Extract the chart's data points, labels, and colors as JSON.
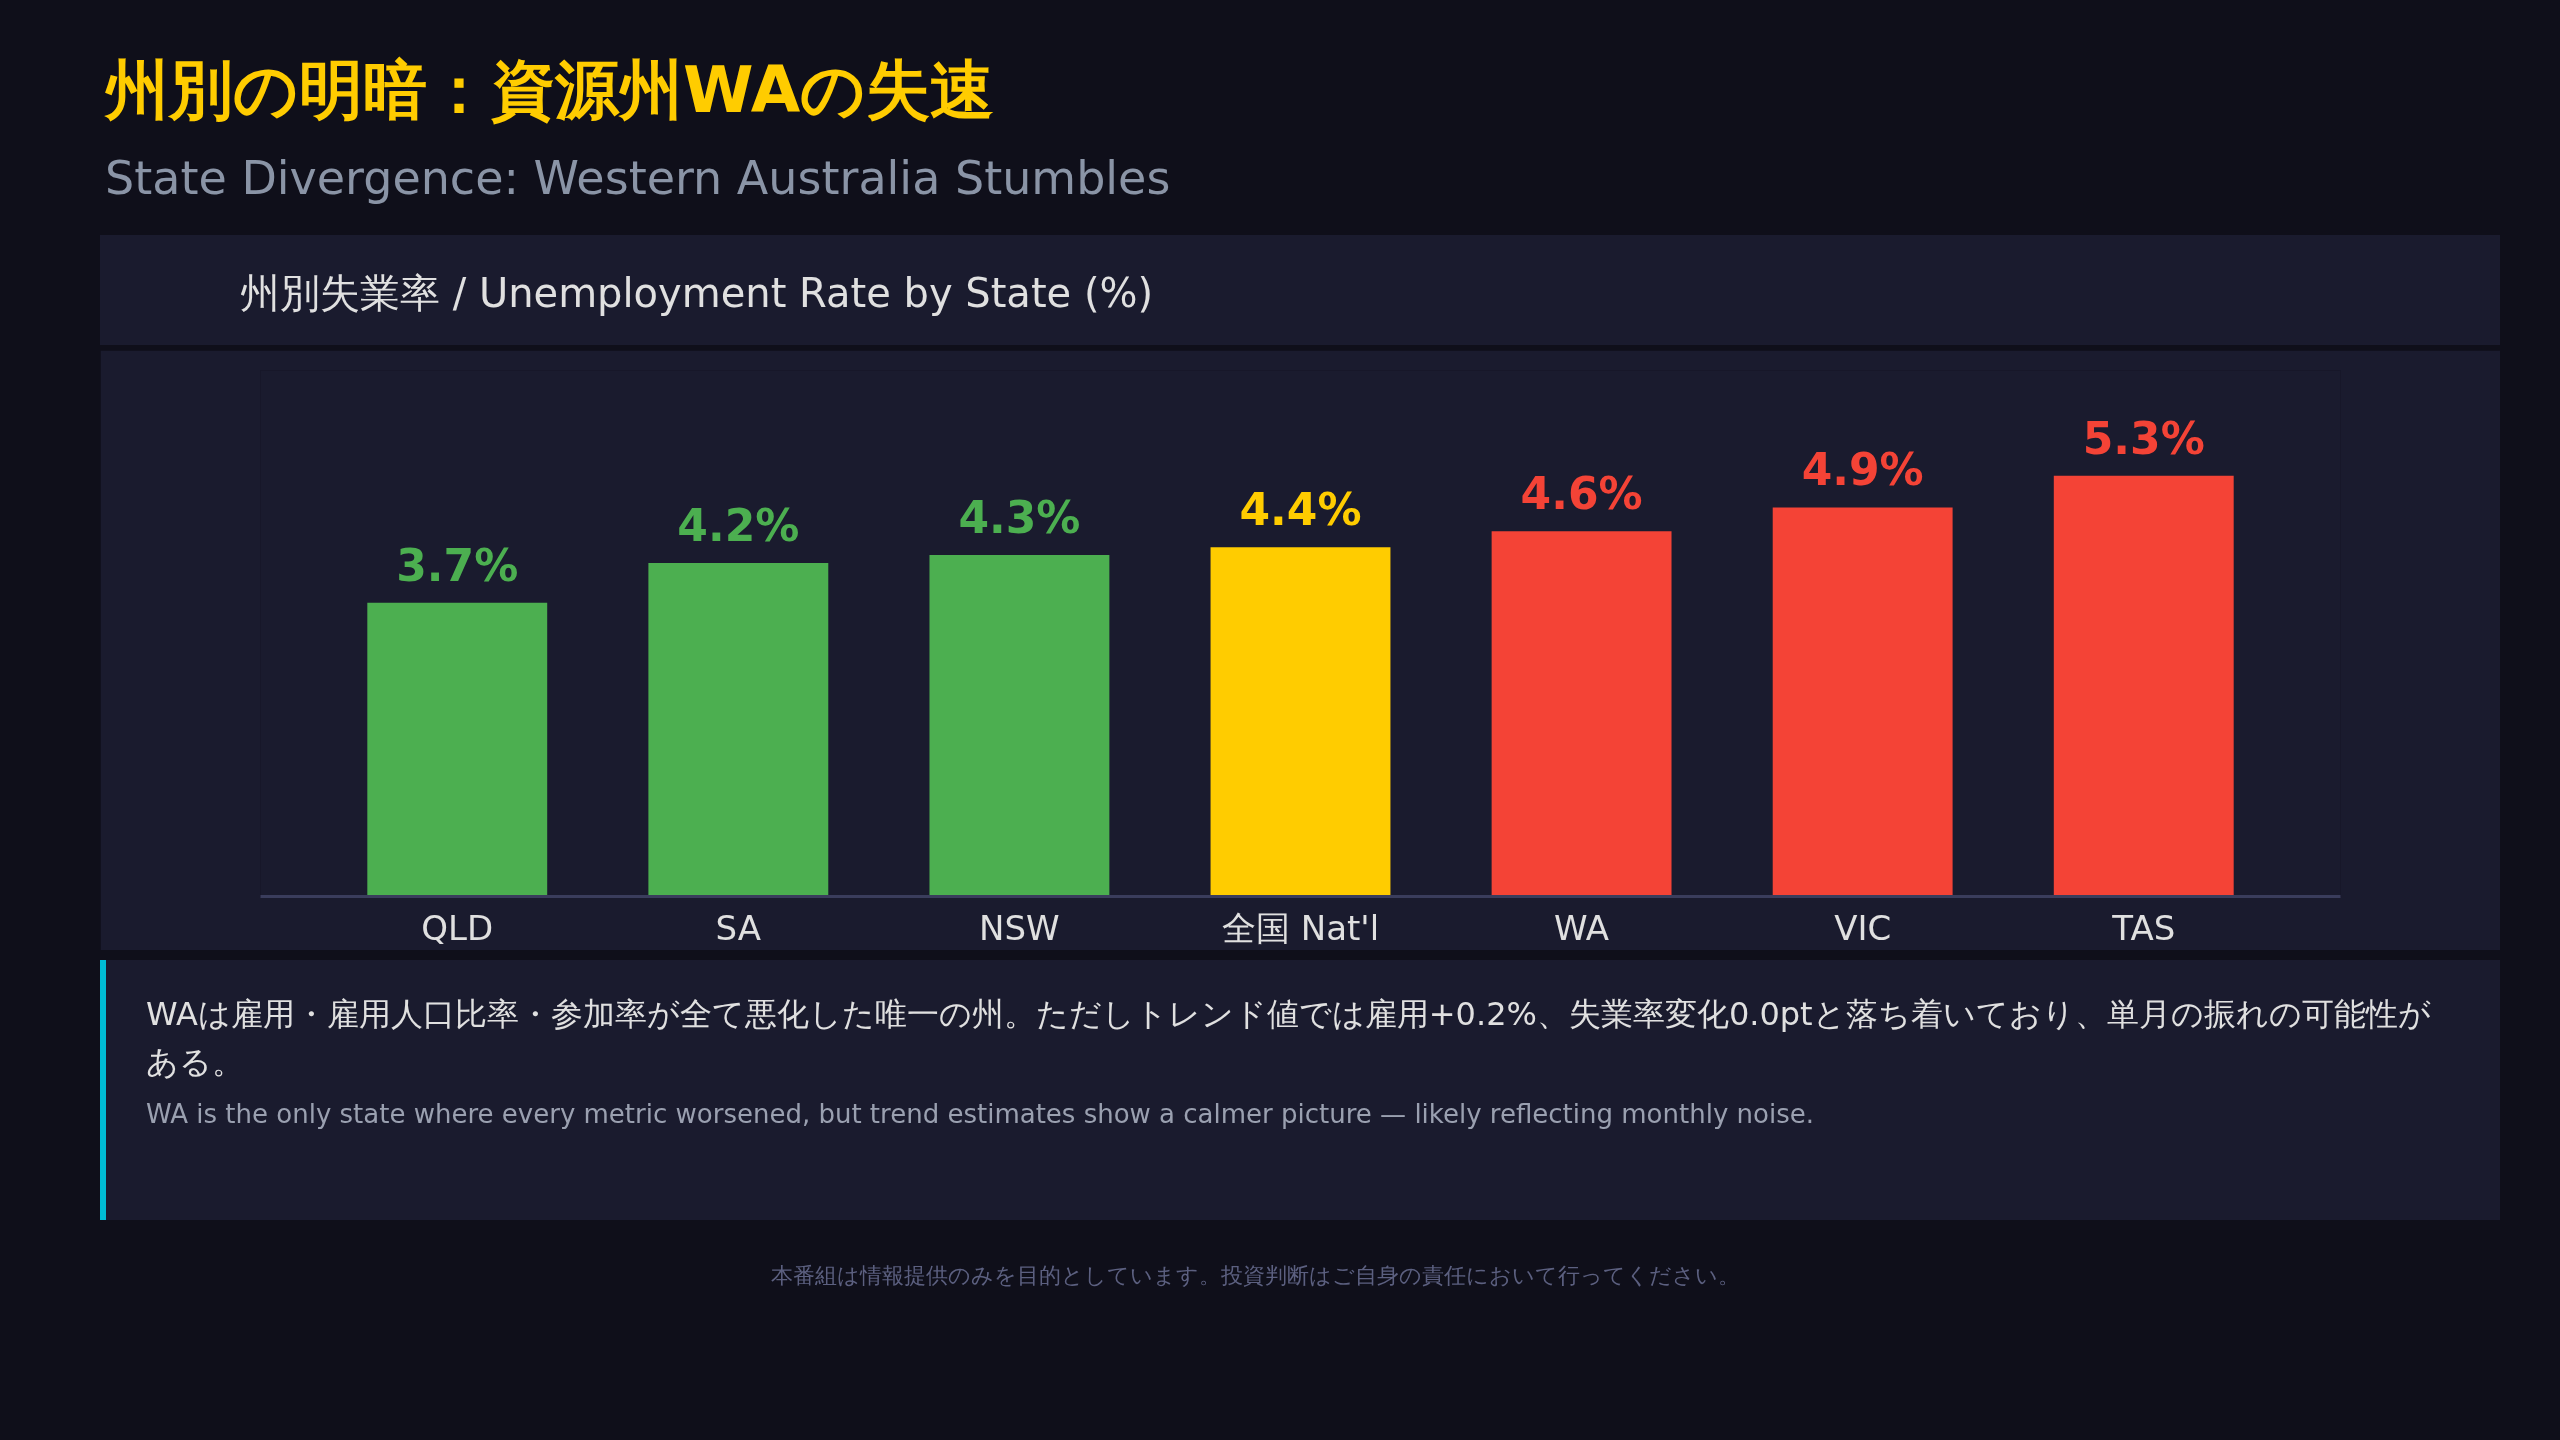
{
  "chart_data": {
    "type": "bar",
    "title": "州別の明暗：資源州WAの失速",
    "subtitle": "State Divergence: Western Australia Stumbles",
    "categories": [
      "QLD",
      "SA",
      "NSW",
      "全国 Nat'l",
      "WA",
      "VIC",
      "TAS"
    ],
    "values": [
      3.7,
      4.2,
      4.3,
      4.4,
      4.6,
      4.9,
      5.3
    ],
    "colors": [
      "#4caf50",
      "#4caf50",
      "#4caf50",
      "#ffcc00",
      "#f44336",
      "#f44336",
      "#f44336"
    ],
    "value_labels": [
      "3.7%",
      "4.2%",
      "4.3%",
      "4.4%",
      "4.6%",
      "4.9%",
      "5.3%"
    ],
    "grid": false,
    "tick_labels": "x",
    "annotations": [
      "州別失業率 / Unemployment Rate by State (%)",
      "WAは雇用・雇用人口比率・参加率が全て悪化した唯一の州。ただしトレンド値では雇用+0.2%、失業率変化0.0ptと落ち着いており、単月の振れの可能性がある。",
      "WA is the only state where every metric worsened, but trend estimates show a calmer picture — likely reflecting monthly noise.",
      "本番組は情報提供のみを目的としています。投資判断はご自身の責任において行ってください。"
    ]
  }
}
